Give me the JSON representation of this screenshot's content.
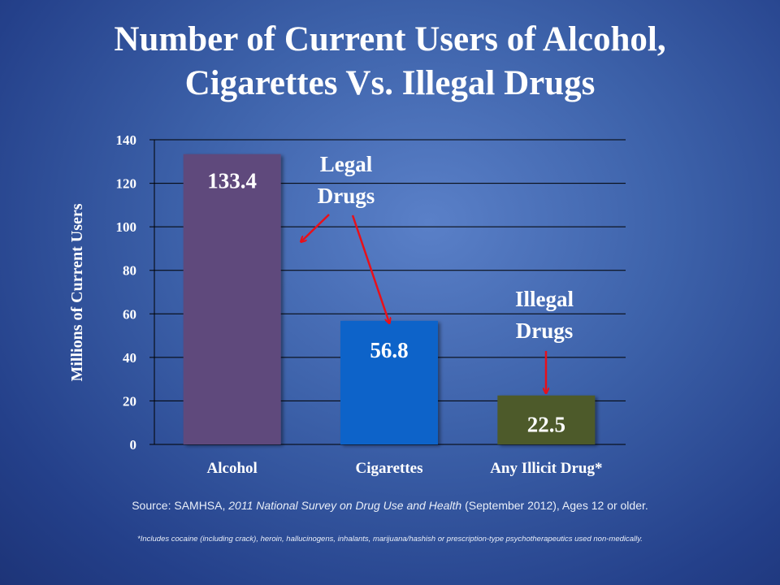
{
  "title_line1": "Number of  Current Users of  Alcohol,",
  "title_line2": "Cigarettes Vs. Illegal Drugs",
  "chart_data": {
    "type": "bar",
    "title": "Number of Current Users of Alcohol, Cigarettes Vs. Illegal Drugs",
    "categories": [
      "Alcohol",
      "Cigarettes",
      "Any Illicit Drug*"
    ],
    "values": [
      133.4,
      56.8,
      22.5
    ],
    "value_labels": [
      "133.4",
      "56.8",
      "22.5"
    ],
    "colors": [
      "#5e4a7b",
      "#0b63c9",
      "#4e5a2a"
    ],
    "ylabel": "Millions of Current Users",
    "xlabel": "",
    "ylim": [
      0,
      140
    ],
    "yticks": [
      0,
      20,
      40,
      60,
      80,
      100,
      120,
      140
    ],
    "grid": true,
    "annotations": [
      {
        "text_line1": "Legal",
        "text_line2": "Drugs",
        "color": "#ffffff",
        "arrow_color": "#e8101a"
      },
      {
        "text_line1": "Illegal",
        "text_line2": "Drugs",
        "color": "#ffffff",
        "arrow_color": "#e8101a"
      }
    ]
  },
  "source": {
    "prefix": "Source:  SAMHSA, ",
    "title": "2011 National Survey on Drug Use and Health",
    "suffix": " (September 2012), Ages 12 or older."
  },
  "footnote": "*Includes cocaine (including crack), heroin, hallucinogens, inhalants, marijuana/hashish or prescription-type  psychotherapeutics used non-medically."
}
